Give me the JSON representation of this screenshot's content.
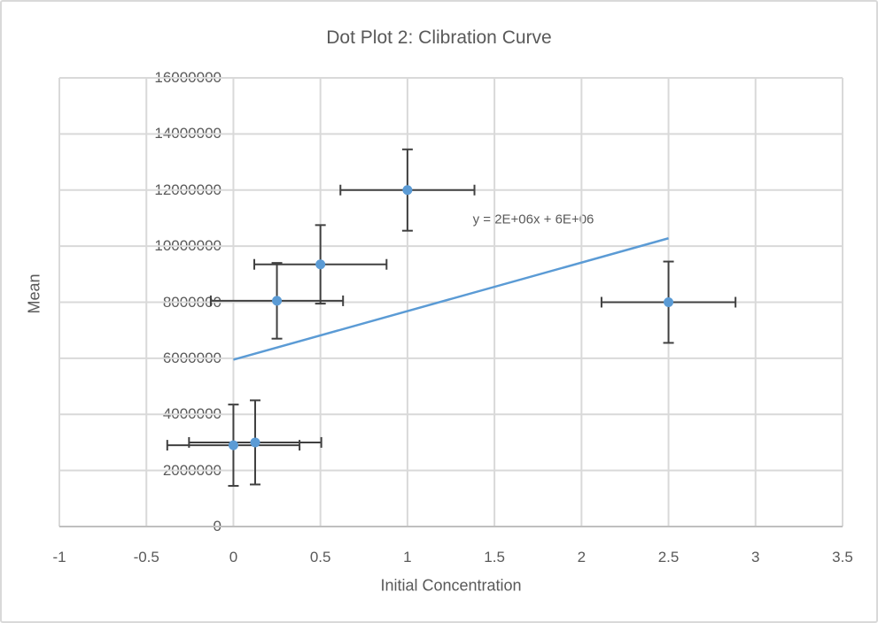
{
  "chart_data": {
    "type": "scatter",
    "title": "Dot Plot 2: Clibration Curve",
    "xlabel": "Initial Concentration",
    "ylabel": "Mean",
    "xlim": [
      -1,
      3.5
    ],
    "ylim": [
      0,
      16000000
    ],
    "grid": true,
    "legend": "none",
    "x_ticks": [
      {
        "value": -1,
        "label": "-1"
      },
      {
        "value": -0.5,
        "label": "-0.5"
      },
      {
        "value": 0,
        "label": "0"
      },
      {
        "value": 0.5,
        "label": "0.5"
      },
      {
        "value": 1,
        "label": "1"
      },
      {
        "value": 1.5,
        "label": "1.5"
      },
      {
        "value": 2,
        "label": "2"
      },
      {
        "value": 2.5,
        "label": "2.5"
      },
      {
        "value": 3,
        "label": "3"
      },
      {
        "value": 3.5,
        "label": "3.5"
      }
    ],
    "y_ticks": [
      {
        "value": 0,
        "label": "0"
      },
      {
        "value": 2000000,
        "label": "2000000"
      },
      {
        "value": 4000000,
        "label": "4000000"
      },
      {
        "value": 6000000,
        "label": "6000000"
      },
      {
        "value": 8000000,
        "label": "8000000"
      },
      {
        "value": 10000000,
        "label": "10000000"
      },
      {
        "value": 12000000,
        "label": "12000000"
      },
      {
        "value": 14000000,
        "label": "14000000"
      },
      {
        "value": 16000000,
        "label": "16000000"
      }
    ],
    "points": [
      {
        "x": 0,
        "y": 2900000,
        "xerr": 0.38,
        "yerr": 1450000
      },
      {
        "x": 0.125,
        "y": 3000000,
        "xerr": 0.38,
        "yerr": 1500000
      },
      {
        "x": 0.25,
        "y": 8050000,
        "xerr": 0.38,
        "yerr": 1350000
      },
      {
        "x": 0.5,
        "y": 9350000,
        "xerr": 0.38,
        "yerr": 1400000
      },
      {
        "x": 1,
        "y": 12000000,
        "xerr": 0.385,
        "yerr": 1450000
      },
      {
        "x": 2.5,
        "y": 8000000,
        "xerr": 0.385,
        "yerr": 1450000
      }
    ],
    "trendline": {
      "x1": 0,
      "y1": 5950000,
      "x2": 2.5,
      "y2": 10280000,
      "equation": "y = 2E+06x + 6E+06"
    },
    "colors": {
      "marker": "#5B9BD5",
      "trendline": "#5B9BD5",
      "error_bar": "#404040",
      "gridline": "#D9D9D9",
      "axis_line": "#BFBFBF",
      "text": "#595959"
    }
  }
}
